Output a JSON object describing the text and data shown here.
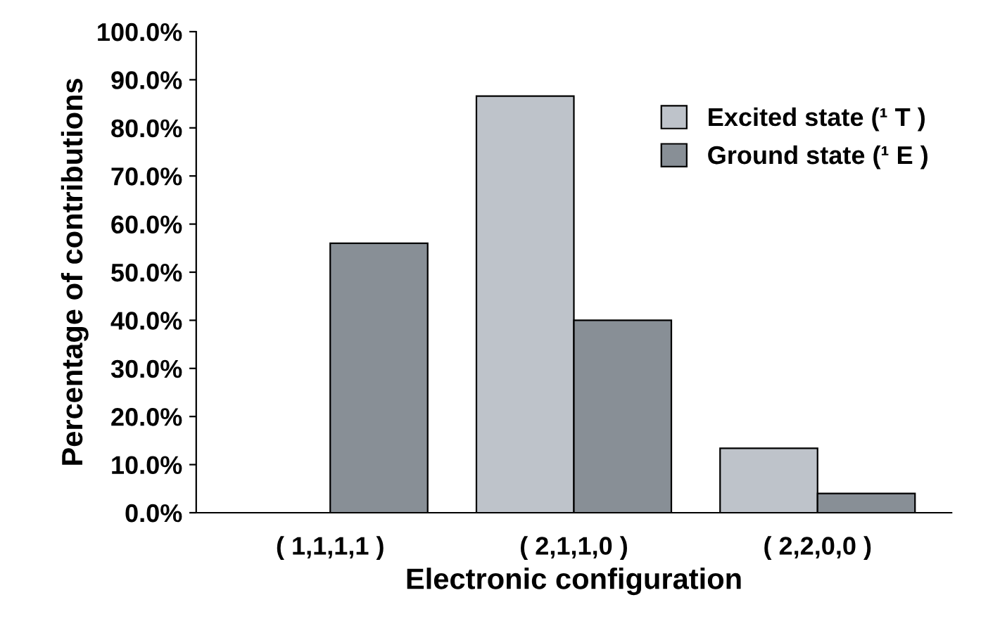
{
  "chart_data": {
    "type": "bar",
    "xlabel": "Electronic configuration",
    "ylabel": "Percentage of contributions",
    "categories": [
      "( 1,1,1,1 )",
      "( 2,1,1,0 )",
      "( 2,2,0,0 )"
    ],
    "series": [
      {
        "name": "Excited state (¹ T )",
        "color": "#bec3ca",
        "values": [
          null,
          86.6,
          13.4
        ]
      },
      {
        "name": "Ground state (¹ E )",
        "color": "#888f96",
        "values": [
          56.0,
          40.0,
          4.0
        ]
      }
    ],
    "ylim": [
      0,
      100
    ],
    "yticks": [
      {
        "value": 0,
        "label": "0.0%"
      },
      {
        "value": 10,
        "label": "10.0%"
      },
      {
        "value": 20,
        "label": "20.0%"
      },
      {
        "value": 30,
        "label": "30.0%"
      },
      {
        "value": 40,
        "label": "40.0%"
      },
      {
        "value": 50,
        "label": "50.0%"
      },
      {
        "value": 60,
        "label": "60.0%"
      },
      {
        "value": 70,
        "label": "70.0%"
      },
      {
        "value": 80,
        "label": "80.0%"
      },
      {
        "value": 90,
        "label": "90.0%"
      },
      {
        "value": 100,
        "label": "100.0%"
      }
    ],
    "grid": false,
    "legend": "right"
  }
}
